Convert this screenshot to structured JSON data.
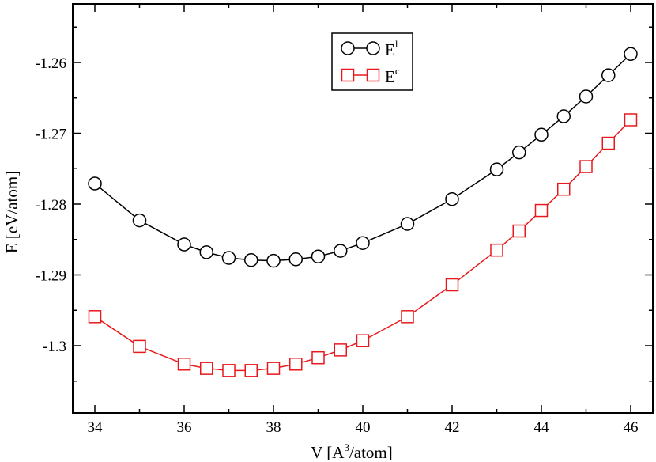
{
  "chart_data": {
    "type": "line",
    "xlabel": "V [A",
    "xlabel_sup": "3",
    "xlabel_tail": "/atom]",
    "ylabel": "E [eV/atom]",
    "xlim": [
      33.5,
      46.5
    ],
    "ylim": [
      -1.3095,
      -1.2535
    ],
    "x_ticks": [
      34,
      36,
      38,
      40,
      42,
      44,
      46
    ],
    "x_tick_labels": [
      "34",
      "36",
      "38",
      "40",
      "42",
      "44",
      "46"
    ],
    "y_ticks": [
      -1.3,
      -1.29,
      -1.28,
      -1.27,
      -1.26
    ],
    "y_tick_labels": [
      "-1.3",
      "-1.29",
      "-1.28",
      "-1.27",
      "-1.26"
    ],
    "legend_position": "top-center",
    "x": [
      34,
      35,
      36,
      36.5,
      37,
      37.5,
      38,
      38.5,
      39,
      39.5,
      40,
      41,
      42,
      43,
      43.5,
      44,
      44.5,
      45,
      45.5,
      46
    ],
    "series": [
      {
        "name": "E",
        "name_sup": "l",
        "marker": "circle",
        "color": "#000000",
        "values": [
          -1.2771,
          -1.2823,
          -1.2857,
          -1.2868,
          -1.2876,
          -1.2879,
          -1.288,
          -1.2878,
          -1.2874,
          -1.2866,
          -1.2855,
          -1.2828,
          -1.2793,
          -1.2751,
          -1.2727,
          -1.2702,
          -1.2676,
          -1.2648,
          -1.2618,
          -1.2588
        ]
      },
      {
        "name": "E",
        "name_sup": "c",
        "marker": "square",
        "color": "#e8191d",
        "values": [
          -1.2959,
          -1.3001,
          -1.3026,
          -1.3032,
          -1.3035,
          -1.3035,
          -1.3032,
          -1.3026,
          -1.3017,
          -1.3006,
          -1.2993,
          -1.2959,
          -1.2914,
          -1.2865,
          -1.2838,
          -1.2809,
          -1.2779,
          -1.2747,
          -1.2714,
          -1.2681
        ]
      }
    ]
  }
}
